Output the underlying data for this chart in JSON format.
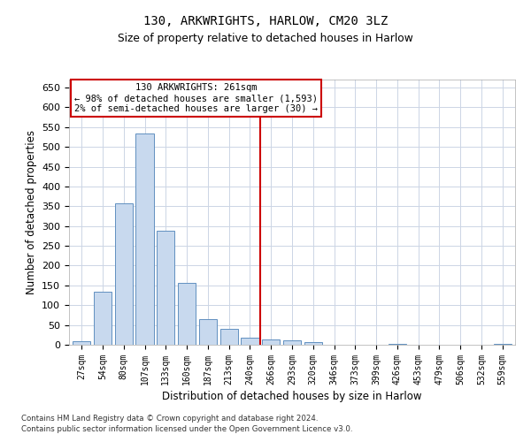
{
  "title1": "130, ARKWRIGHTS, HARLOW, CM20 3LZ",
  "title2": "Size of property relative to detached houses in Harlow",
  "xlabel": "Distribution of detached houses by size in Harlow",
  "ylabel": "Number of detached properties",
  "categories": [
    "27sqm",
    "54sqm",
    "80sqm",
    "107sqm",
    "133sqm",
    "160sqm",
    "187sqm",
    "213sqm",
    "240sqm",
    "266sqm",
    "293sqm",
    "320sqm",
    "346sqm",
    "373sqm",
    "399sqm",
    "426sqm",
    "453sqm",
    "479sqm",
    "506sqm",
    "532sqm",
    "559sqm"
  ],
  "bar_values": [
    8,
    133,
    358,
    533,
    288,
    157,
    65,
    40,
    18,
    13,
    11,
    7,
    0,
    0,
    0,
    2,
    0,
    0,
    0,
    0,
    2
  ],
  "bar_color": "#c8d9ee",
  "bar_edge_color": "#6090c0",
  "vline_color": "#cc0000",
  "vline_pos": 8.5,
  "ylim": [
    0,
    670
  ],
  "yticks": [
    0,
    50,
    100,
    150,
    200,
    250,
    300,
    350,
    400,
    450,
    500,
    550,
    600,
    650
  ],
  "annotation_title": "130 ARKWRIGHTS: 261sqm",
  "annotation_line1": "← 98% of detached houses are smaller (1,593)",
  "annotation_line2": "2% of semi-detached houses are larger (30) →",
  "annotation_box_color": "#ffffff",
  "annotation_box_edge": "#cc0000",
  "footer1": "Contains HM Land Registry data © Crown copyright and database right 2024.",
  "footer2": "Contains public sector information licensed under the Open Government Licence v3.0.",
  "bg_color": "#ffffff",
  "grid_color": "#ccd5e5"
}
